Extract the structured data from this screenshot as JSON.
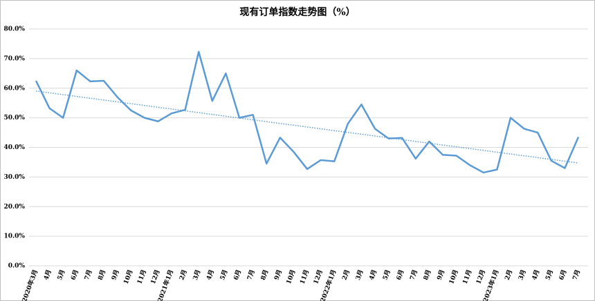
{
  "chart_data": {
    "type": "line",
    "title": "现有订单指数走势图（%）",
    "categories": [
      "2020年3月",
      "4月",
      "5月",
      "6月",
      "7月",
      "8月",
      "9月",
      "10月",
      "11月",
      "12月",
      "2021年1月",
      "2月",
      "3月",
      "4月",
      "5月",
      "6月",
      "7月",
      "8月",
      "9月",
      "10月",
      "11月",
      "12月",
      "2022年1月",
      "2月",
      "3月",
      "4月",
      "5月",
      "6月",
      "7月",
      "8月",
      "9月",
      "10月",
      "11月",
      "12月",
      "2023年1月",
      "2月",
      "3月",
      "4月",
      "5月",
      "6月",
      "7月"
    ],
    "series": [
      {
        "name": "现有订单指数",
        "color": "#5b9bd5",
        "values": [
          62.5,
          53.2,
          50.0,
          66.0,
          62.3,
          62.5,
          57.0,
          52.5,
          50.0,
          48.8,
          51.5,
          52.7,
          72.3,
          55.7,
          65.0,
          50.0,
          51.0,
          34.5,
          43.3,
          38.5,
          32.7,
          35.7,
          35.3,
          48.0,
          54.5,
          46.3,
          43.0,
          43.2,
          36.2,
          42.0,
          37.5,
          37.2,
          34.0,
          31.5,
          32.5,
          50.0,
          46.3,
          45.0,
          35.5,
          33.0,
          43.5
        ]
      }
    ],
    "ylim": [
      0,
      80
    ],
    "yticks": [
      {
        "value": 0,
        "label": "0.0%"
      },
      {
        "value": 10,
        "label": "10.0%"
      },
      {
        "value": 20,
        "label": "20.0%"
      },
      {
        "value": 30,
        "label": "30.0%"
      },
      {
        "value": 40,
        "label": "40.0%"
      },
      {
        "value": 50,
        "label": "50.0%"
      },
      {
        "value": 60,
        "label": "60.0%"
      },
      {
        "value": 70,
        "label": "70.0%"
      },
      {
        "value": 80,
        "label": "80.0%"
      }
    ],
    "grid": true,
    "trendline": "linear"
  }
}
